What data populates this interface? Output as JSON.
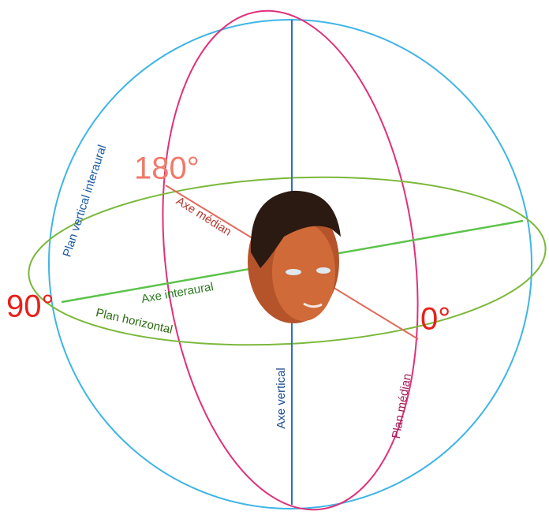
{
  "labels": {
    "deg180": "180°",
    "deg90": "90°",
    "deg0": "0°",
    "axe_median": "Axe médian",
    "axe_interaural": "Axe interaural",
    "plan_horizontal": "Plan horizontal",
    "plan_vertical_interaural": "Plan vertical interaural",
    "axe_vertical": "Axe vertical",
    "plan_median": "Plan médian"
  }
}
